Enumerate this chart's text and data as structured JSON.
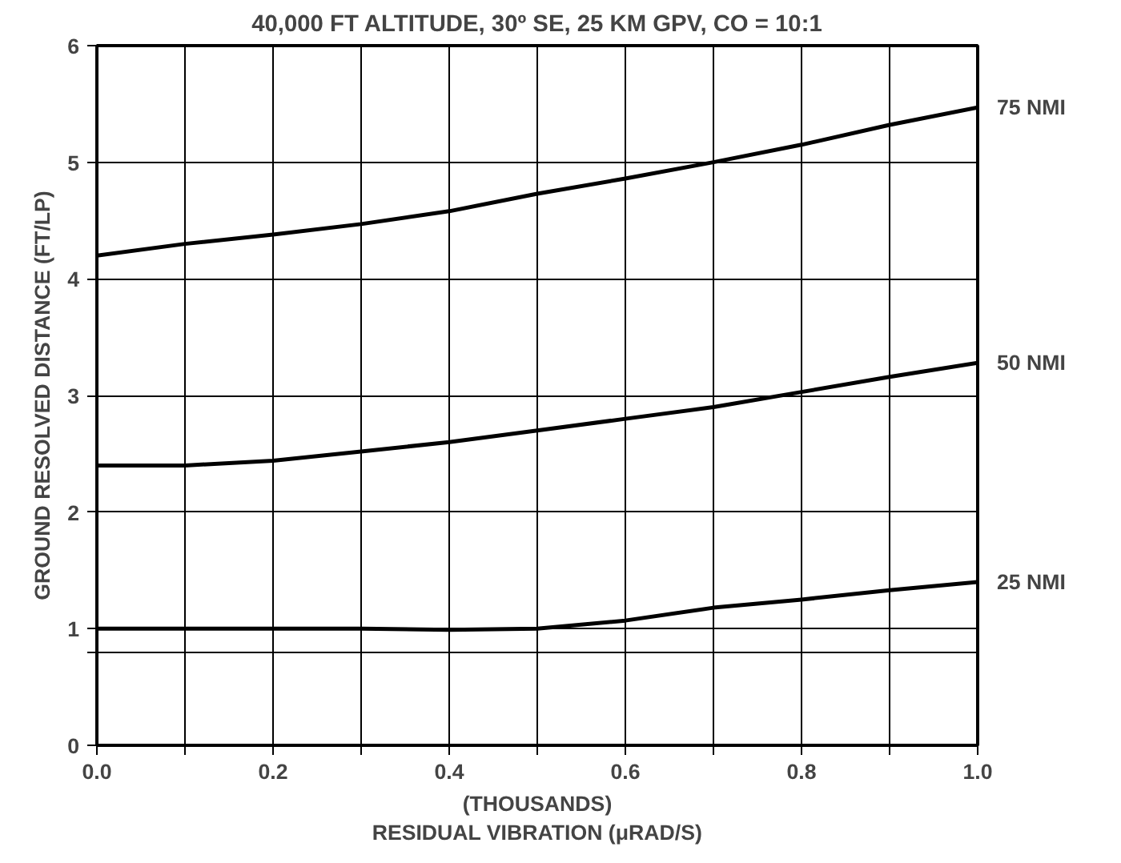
{
  "chart_data": {
    "type": "line",
    "title": "40,000 FT ALTITUDE, 30º SE, 25 KM GPV, CO = 10:1",
    "xlabel": "(THOUSANDS)\nRESIDUAL VIBRATION (μRAD/S)",
    "ylabel": "GROUND RESOLVED DISTANCE (FT/LP)",
    "x": [
      0,
      0.1,
      0.2,
      0.3,
      0.4,
      0.5,
      0.6,
      0.7,
      0.8,
      0.9,
      1.0
    ],
    "series": [
      {
        "name": "75 NMI",
        "color": "#000000",
        "values": [
          4.2,
          4.3,
          4.38,
          4.47,
          4.58,
          4.73,
          4.86,
          5.0,
          5.15,
          5.32,
          5.47
        ]
      },
      {
        "name": "50 NMI",
        "color": "#000000",
        "values": [
          2.4,
          2.4,
          2.44,
          2.52,
          2.6,
          2.7,
          2.8,
          2.9,
          3.03,
          3.16,
          3.28
        ]
      },
      {
        "name": "25 NMI",
        "color": "#000000",
        "values": [
          1.0,
          1.0,
          1.0,
          1.0,
          0.99,
          1.0,
          1.07,
          1.18,
          1.25,
          1.33,
          1.4
        ]
      }
    ],
    "xlim": [
      0,
      1.0
    ],
    "ylim": [
      0,
      6
    ],
    "xticks": [
      {
        "value": 0,
        "label": "0.0"
      },
      {
        "value": 0.1,
        "label": null
      },
      0.2,
      {
        "value": 0.3,
        "label": null
      },
      0.4,
      {
        "value": 0.5,
        "label": null
      },
      0.6,
      {
        "value": 0.7,
        "label": null
      },
      0.8,
      {
        "value": 0.9,
        "label": null
      },
      {
        "value": 1,
        "label": "1.0"
      }
    ],
    "yticks": [
      0,
      {
        "value": 0.8,
        "label": null
      },
      1,
      2,
      3,
      4,
      5,
      6
    ],
    "grid": true,
    "marker": "none",
    "line_style": "solid"
  }
}
